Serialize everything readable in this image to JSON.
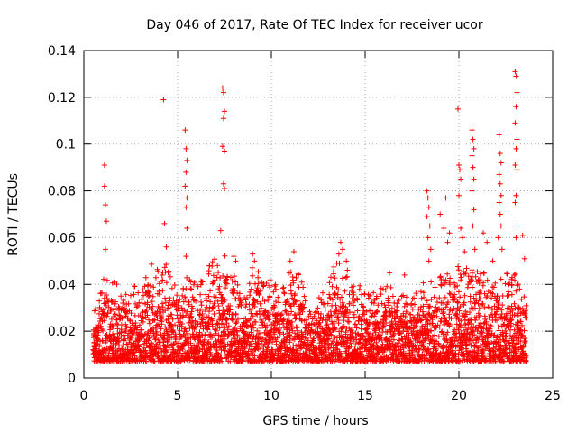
{
  "chart_data": {
    "type": "scatter",
    "title": "Day 046 of 2017, Rate Of TEC Index for receiver ucor",
    "xlabel": "GPS time / hours",
    "ylabel": "ROTI / TECUs",
    "xlim": [
      0,
      25
    ],
    "ylim": [
      0,
      0.14
    ],
    "xticks": [
      0,
      5,
      10,
      15,
      20,
      25
    ],
    "xtick_labels": [
      "0",
      "5",
      "10",
      "15",
      "20",
      "25"
    ],
    "yticks": [
      0,
      0.02,
      0.04,
      0.06,
      0.08,
      0.1,
      0.12,
      0.14
    ],
    "ytick_labels": [
      "0",
      "0.02",
      "0.04",
      "0.06",
      "0.08",
      "0.1",
      "0.12",
      "0.14"
    ],
    "grid": true,
    "marker": "+",
    "series_color": "#ff0000",
    "series": [
      {
        "name": "ROTI",
        "points": [
          [
            1.1,
            0.091
          ],
          [
            1.1,
            0.082
          ],
          [
            1.15,
            0.074
          ],
          [
            1.2,
            0.067
          ],
          [
            1.15,
            0.055
          ],
          [
            4.25,
            0.119
          ],
          [
            4.3,
            0.066
          ],
          [
            4.4,
            0.056
          ],
          [
            5.4,
            0.106
          ],
          [
            5.45,
            0.098
          ],
          [
            5.5,
            0.093
          ],
          [
            5.45,
            0.088
          ],
          [
            5.4,
            0.082
          ],
          [
            5.5,
            0.077
          ],
          [
            5.45,
            0.073
          ],
          [
            5.5,
            0.064
          ],
          [
            5.45,
            0.052
          ],
          [
            7.4,
            0.124
          ],
          [
            7.45,
            0.122
          ],
          [
            7.5,
            0.114
          ],
          [
            7.45,
            0.111
          ],
          [
            7.4,
            0.099
          ],
          [
            7.5,
            0.097
          ],
          [
            7.45,
            0.083
          ],
          [
            7.5,
            0.081
          ],
          [
            7.3,
            0.063
          ],
          [
            8.0,
            0.052
          ],
          [
            8.1,
            0.05
          ],
          [
            9.0,
            0.053
          ],
          [
            9.1,
            0.05
          ],
          [
            11.2,
            0.054
          ],
          [
            11.0,
            0.05
          ],
          [
            13.7,
            0.058
          ],
          [
            13.8,
            0.055
          ],
          [
            13.6,
            0.053
          ],
          [
            14.0,
            0.05
          ],
          [
            16.3,
            0.045
          ],
          [
            17.1,
            0.044
          ],
          [
            18.3,
            0.08
          ],
          [
            18.35,
            0.077
          ],
          [
            18.4,
            0.073
          ],
          [
            18.3,
            0.069
          ],
          [
            18.45,
            0.065
          ],
          [
            18.35,
            0.06
          ],
          [
            18.5,
            0.055
          ],
          [
            18.4,
            0.05
          ],
          [
            19.0,
            0.07
          ],
          [
            19.2,
            0.064
          ],
          [
            19.3,
            0.077
          ],
          [
            19.5,
            0.062
          ],
          [
            19.4,
            0.058
          ],
          [
            19.95,
            0.115
          ],
          [
            20.0,
            0.091
          ],
          [
            20.05,
            0.089
          ],
          [
            20.1,
            0.085
          ],
          [
            20.0,
            0.078
          ],
          [
            20.1,
            0.064
          ],
          [
            20.2,
            0.06
          ],
          [
            20.3,
            0.054
          ],
          [
            20.7,
            0.106
          ],
          [
            20.75,
            0.102
          ],
          [
            20.8,
            0.098
          ],
          [
            20.7,
            0.095
          ],
          [
            20.75,
            0.09
          ],
          [
            20.8,
            0.085
          ],
          [
            20.7,
            0.08
          ],
          [
            20.8,
            0.072
          ],
          [
            20.75,
            0.065
          ],
          [
            20.85,
            0.055
          ],
          [
            21.3,
            0.062
          ],
          [
            21.5,
            0.058
          ],
          [
            21.8,
            0.05
          ],
          [
            22.15,
            0.104
          ],
          [
            22.2,
            0.096
          ],
          [
            22.25,
            0.092
          ],
          [
            22.15,
            0.087
          ],
          [
            22.2,
            0.083
          ],
          [
            22.25,
            0.078
          ],
          [
            22.15,
            0.075
          ],
          [
            22.2,
            0.07
          ],
          [
            22.25,
            0.065
          ],
          [
            22.1,
            0.06
          ],
          [
            22.3,
            0.055
          ],
          [
            23.0,
            0.131
          ],
          [
            23.05,
            0.129
          ],
          [
            23.1,
            0.122
          ],
          [
            23.05,
            0.116
          ],
          [
            23.0,
            0.109
          ],
          [
            23.1,
            0.102
          ],
          [
            23.05,
            0.098
          ],
          [
            23.0,
            0.091
          ],
          [
            23.1,
            0.089
          ],
          [
            23.05,
            0.078
          ],
          [
            23.0,
            0.075
          ],
          [
            23.1,
            0.065
          ],
          [
            23.05,
            0.06
          ],
          [
            23.4,
            0.061
          ],
          [
            23.5,
            0.051
          ]
        ],
        "dense_band": {
          "description": "continuous dense cloud of samples between 0.5 and 23.6 hours",
          "x_range": [
            0.5,
            23.6
          ],
          "y_floor": 0.007,
          "envelope": [
            [
              0.5,
              0.027
            ],
            [
              1.0,
              0.042
            ],
            [
              1.5,
              0.047
            ],
            [
              2.0,
              0.042
            ],
            [
              2.5,
              0.04
            ],
            [
              3.0,
              0.039
            ],
            [
              3.5,
              0.056
            ],
            [
              4.0,
              0.046
            ],
            [
              4.5,
              0.05
            ],
            [
              5.0,
              0.046
            ],
            [
              5.5,
              0.048
            ],
            [
              6.0,
              0.045
            ],
            [
              6.5,
              0.044
            ],
            [
              7.0,
              0.056
            ],
            [
              7.5,
              0.053
            ],
            [
              8.0,
              0.045
            ],
            [
              8.5,
              0.033
            ],
            [
              9.0,
              0.05
            ],
            [
              9.5,
              0.046
            ],
            [
              10.0,
              0.042
            ],
            [
              10.5,
              0.04
            ],
            [
              11.0,
              0.046
            ],
            [
              11.5,
              0.045
            ],
            [
              12.0,
              0.036
            ],
            [
              12.5,
              0.035
            ],
            [
              13.0,
              0.038
            ],
            [
              13.5,
              0.054
            ],
            [
              14.0,
              0.047
            ],
            [
              14.5,
              0.04
            ],
            [
              15.0,
              0.041
            ],
            [
              15.5,
              0.036
            ],
            [
              16.0,
              0.04
            ],
            [
              16.5,
              0.04
            ],
            [
              17.0,
              0.038
            ],
            [
              17.5,
              0.034
            ],
            [
              18.0,
              0.04
            ],
            [
              18.5,
              0.045
            ],
            [
              19.0,
              0.044
            ],
            [
              19.5,
              0.046
            ],
            [
              20.0,
              0.048
            ],
            [
              20.5,
              0.05
            ],
            [
              21.0,
              0.046
            ],
            [
              21.5,
              0.045
            ],
            [
              22.0,
              0.047
            ],
            [
              22.5,
              0.046
            ],
            [
              23.0,
              0.045
            ],
            [
              23.6,
              0.04
            ]
          ]
        }
      }
    ]
  }
}
